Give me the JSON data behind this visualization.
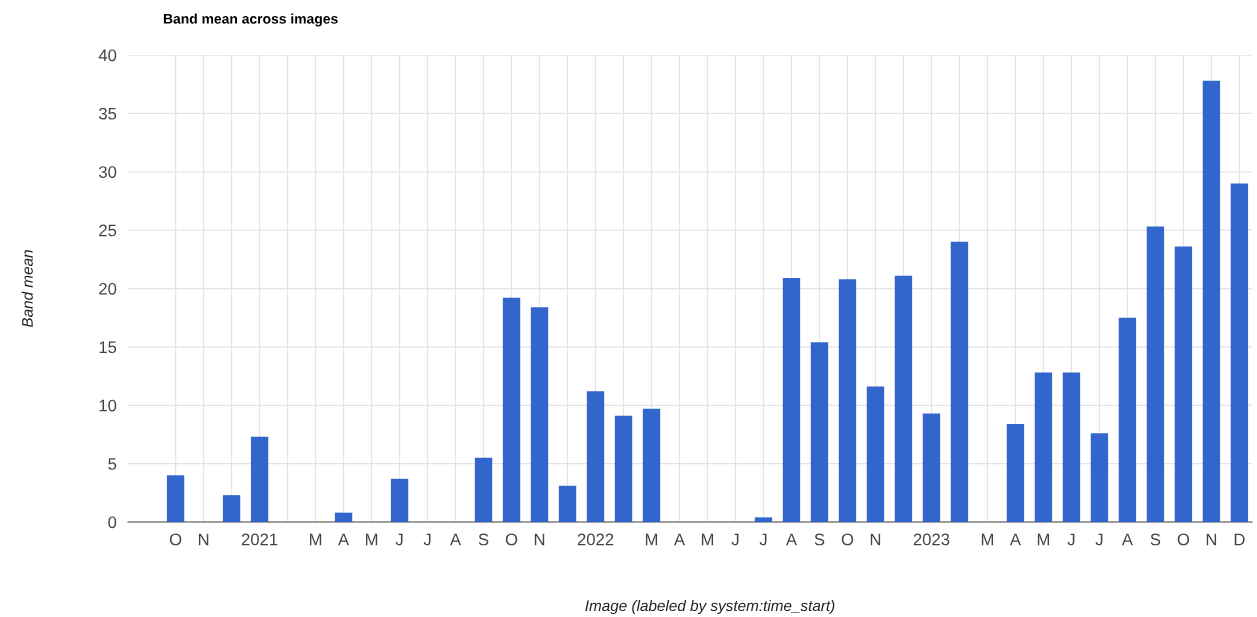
{
  "chart_data": {
    "type": "bar",
    "title": "Band mean across images",
    "xlabel": "Image (labeled by system:time_start)",
    "ylabel": "Band mean",
    "categories": [
      "O",
      "N",
      null,
      "2021",
      null,
      "M",
      "A",
      "M",
      "J",
      "J",
      "A",
      "S",
      "O",
      "N",
      null,
      "2022",
      null,
      "M",
      "A",
      "M",
      "J",
      "J",
      "A",
      "S",
      "O",
      "N",
      null,
      "2023",
      null,
      "M",
      "A",
      "M",
      "J",
      "J",
      "A",
      "S",
      "O",
      "N",
      "D"
    ],
    "values": [
      4.0,
      0,
      2.3,
      7.3,
      0,
      0,
      0.8,
      0,
      3.7,
      0,
      0,
      5.5,
      19.2,
      18.4,
      3.1,
      11.2,
      9.1,
      9.7,
      0,
      0,
      0,
      0.4,
      20.9,
      15.4,
      20.8,
      11.6,
      21.1,
      9.3,
      24.0,
      0,
      8.4,
      12.8,
      12.8,
      7.6,
      17.5,
      25.3,
      23.6,
      37.8,
      29.0
    ],
    "color": "#3366cc",
    "ylim": [
      0,
      40
    ],
    "yticks": [
      0,
      5,
      10,
      15,
      20,
      25,
      30,
      35,
      40
    ],
    "grid": true,
    "legend": false
  }
}
